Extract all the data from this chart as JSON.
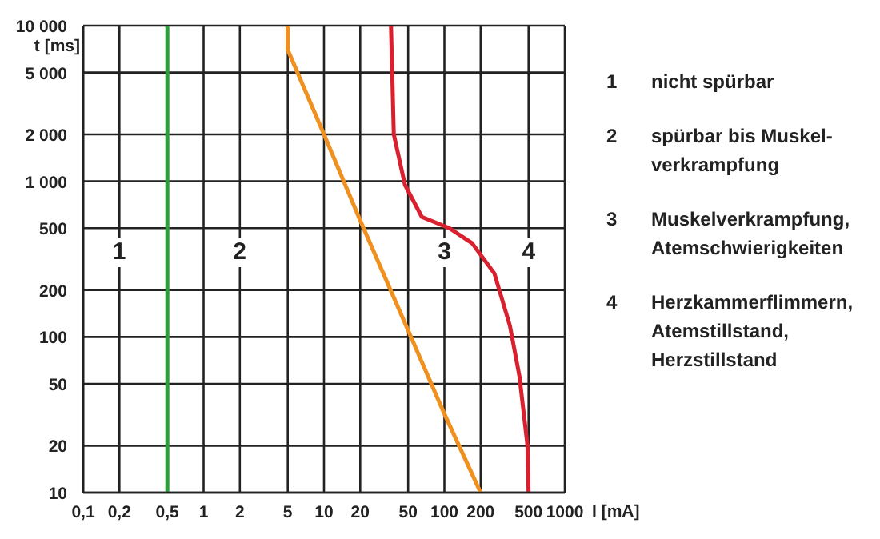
{
  "chart_data": {
    "type": "line",
    "xlabel": "I [mA]",
    "ylabel": "t [ms]",
    "log": "xy",
    "grid": true,
    "marker": "none",
    "line_style": "solid",
    "xlim": [
      0.1,
      1000
    ],
    "ylim": [
      10,
      10000
    ],
    "xticks": [
      {
        "value": 0.1,
        "label": "0,1"
      },
      {
        "value": 0.2,
        "label": "0,2"
      },
      {
        "value": 0.5,
        "label": "0,5"
      },
      1,
      2,
      5,
      10,
      20,
      50,
      100,
      200,
      500,
      1000
    ],
    "yticks": [
      10,
      20,
      50,
      100,
      200,
      500,
      {
        "value": 1000,
        "label": "1 000"
      },
      {
        "value": 2000,
        "label": "2 000"
      },
      {
        "value": 5000,
        "label": "5 000"
      },
      {
        "value": 10000,
        "label": "10 000"
      }
    ],
    "series": [
      {
        "color": "#2e9e3a",
        "x": [
          0.5,
          0.5
        ],
        "values": [
          10,
          10000
        ]
      },
      {
        "color": "#f0901e",
        "x": [
          5,
          5,
          10,
          20,
          50,
          100,
          200
        ],
        "values": [
          10000,
          7000,
          2000,
          560,
          110,
          32,
          10
        ]
      },
      {
        "color": "#d9202f",
        "x": [
          36,
          38,
          47,
          65,
          110,
          170,
          260,
          350,
          420,
          490,
          500
        ],
        "values": [
          10000,
          2000,
          950,
          590,
          500,
          400,
          256,
          118,
          56,
          20,
          10
        ]
      }
    ],
    "annotations": [
      "1",
      "2",
      "3",
      "4",
      "1 nicht spürbar",
      "2 spürbar bis Muskel-\nverkrampfung",
      "3 Muskelverkrampfung,\nAtemschwierigkeiten",
      "4 Herzkammerflimmern,\nAtemstillstand,\nHerzstillstand"
    ]
  }
}
